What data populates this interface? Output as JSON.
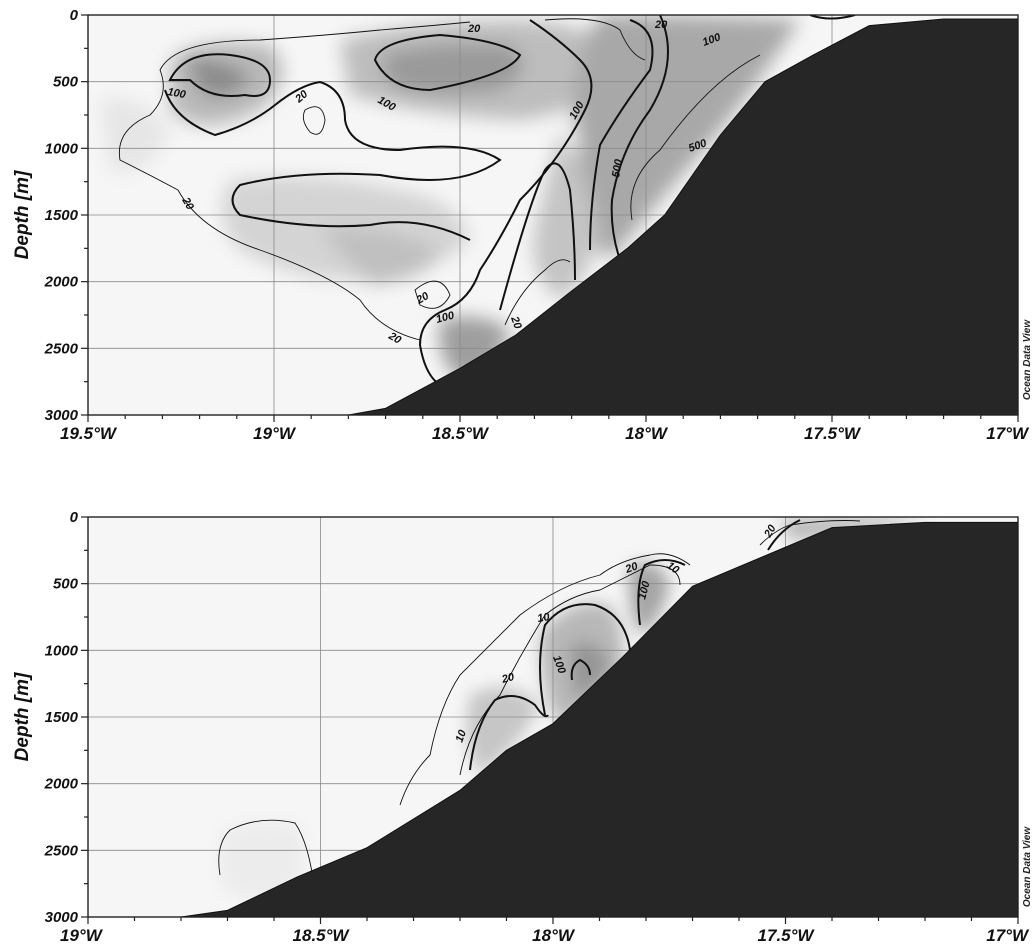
{
  "watermark": "Ocean Data View",
  "chart_data": [
    {
      "type": "heatmap",
      "title": "",
      "ylabel": "Depth [m]",
      "xlabel": "",
      "xlim": [
        -19.5,
        -17.0
      ],
      "ylim": [
        3000,
        0
      ],
      "x_ticks": [
        -19.5,
        -19.0,
        -18.5,
        -18.0,
        -17.5,
        -17.0
      ],
      "x_tick_labels": [
        "19.5°W",
        "19°W",
        "18.5°W",
        "18°W",
        "17.5°W",
        "17°W"
      ],
      "y_ticks": [
        0,
        500,
        1000,
        1500,
        2000,
        2500,
        3000
      ],
      "y_tick_labels": [
        "0",
        "500",
        "1000",
        "1500",
        "2000",
        "2500",
        "3000"
      ],
      "grid": true,
      "contour_levels": [
        20,
        100,
        500
      ],
      "contour_labels": [
        "20",
        "20",
        "20",
        "20",
        "20",
        "20",
        "20",
        "100",
        "100",
        "100",
        "100",
        "100",
        "500",
        "500",
        "500"
      ],
      "bathymetry": [
        {
          "x": -18.8,
          "y": 3000
        },
        {
          "x": -18.7,
          "y": 2950
        },
        {
          "x": -18.5,
          "y": 2650
        },
        {
          "x": -18.35,
          "y": 2400
        },
        {
          "x": -18.2,
          "y": 2070
        },
        {
          "x": -18.05,
          "y": 1750
        },
        {
          "x": -17.95,
          "y": 1500
        },
        {
          "x": -17.8,
          "y": 900
        },
        {
          "x": -17.68,
          "y": 500
        },
        {
          "x": -17.55,
          "y": 300
        },
        {
          "x": -17.4,
          "y": 80
        },
        {
          "x": -17.2,
          "y": 30
        },
        {
          "x": -17.0,
          "y": 30
        }
      ]
    },
    {
      "type": "heatmap",
      "title": "",
      "ylabel": "Depth [m]",
      "xlabel": "",
      "xlim": [
        -19.0,
        -17.0
      ],
      "ylim": [
        3000,
        0
      ],
      "x_ticks": [
        -19.0,
        -18.5,
        -18.0,
        -17.5,
        -17.0
      ],
      "x_tick_labels": [
        "19°W",
        "18.5°W",
        "18°W",
        "17.5°W",
        "17°W"
      ],
      "y_ticks": [
        0,
        500,
        1000,
        1500,
        2000,
        2500,
        3000
      ],
      "y_tick_labels": [
        "0",
        "500",
        "1000",
        "1500",
        "2000",
        "2500",
        "3000"
      ],
      "grid": true,
      "contour_levels": [
        10,
        20,
        100
      ],
      "contour_labels": [
        "10",
        "10",
        "10",
        "20",
        "20",
        "20",
        "100",
        "100"
      ],
      "bathymetry": [
        {
          "x": -18.8,
          "y": 3000
        },
        {
          "x": -18.7,
          "y": 2950
        },
        {
          "x": -18.55,
          "y": 2700
        },
        {
          "x": -18.4,
          "y": 2480
        },
        {
          "x": -18.2,
          "y": 2050
        },
        {
          "x": -18.1,
          "y": 1750
        },
        {
          "x": -18.0,
          "y": 1550
        },
        {
          "x": -17.85,
          "y": 1050
        },
        {
          "x": -17.7,
          "y": 520
        },
        {
          "x": -17.55,
          "y": 300
        },
        {
          "x": -17.4,
          "y": 80
        },
        {
          "x": -17.2,
          "y": 40
        },
        {
          "x": -17.0,
          "y": 40
        }
      ]
    }
  ]
}
